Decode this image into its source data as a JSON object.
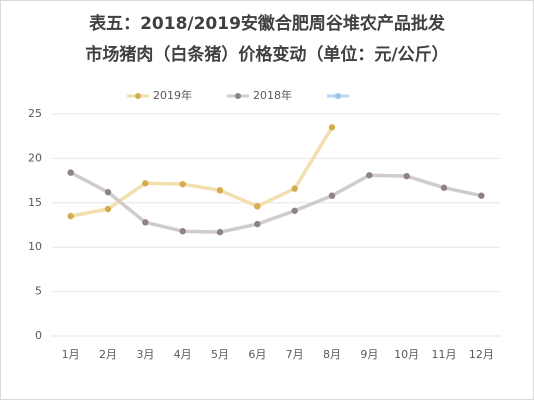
{
  "chart_data": {
    "type": "line",
    "title": [
      "表五：2018/2019安徽合肥周谷堆农产品批发",
      "市场猪肉（白条猪）价格变动（单位：元/公斤）"
    ],
    "categories": [
      "1月",
      "2月",
      "3月",
      "4月",
      "5月",
      "6月",
      "7月",
      "8月",
      "9月",
      "10月",
      "11月",
      "12月"
    ],
    "series": [
      {
        "name": "2019年",
        "color": "#f2dfae",
        "marker_color": "#d4ab4e",
        "values": [
          13.5,
          14.3,
          17.2,
          17.1,
          16.4,
          14.6,
          16.6,
          23.5,
          null,
          null,
          null,
          null
        ]
      },
      {
        "name": "2018年",
        "color": "#d0cccd",
        "marker_color": "#8e8286",
        "values": [
          18.4,
          16.2,
          12.8,
          11.8,
          11.7,
          12.6,
          14.1,
          15.8,
          18.1,
          18.0,
          16.7,
          15.8
        ]
      },
      {
        "color": "#bcd5ee",
        "marker_color": "#9dc3e6",
        "values": [
          null,
          null,
          null,
          null,
          null,
          null,
          null,
          null,
          null,
          null,
          null,
          null
        ]
      }
    ],
    "ylim": [
      0,
      25
    ],
    "yticks": [
      0,
      5,
      10,
      15,
      20,
      25
    ],
    "grid": true,
    "legend": "top"
  }
}
